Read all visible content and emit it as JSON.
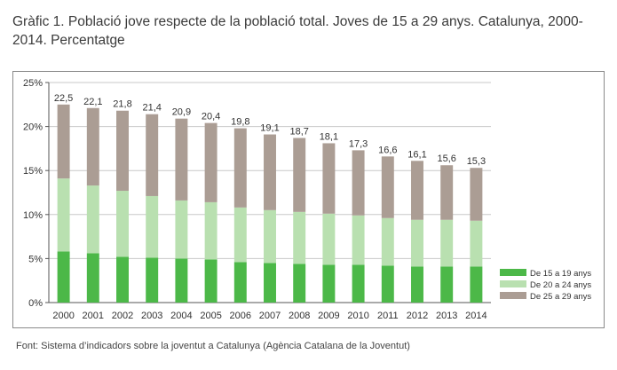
{
  "title": "Gràfic 1. Població jove respecte de la població total. Joves de 15 a 29 anys. Catalunya, 2000-2014. Percentatge",
  "source": "Font: Sistema d’indicadors sobre la joventut a Catalunya (Agència Catalana de la Joventut)",
  "chart_data": {
    "type": "bar",
    "stacked": true,
    "categories": [
      "2000",
      "2001",
      "2002",
      "2003",
      "2004",
      "2005",
      "2006",
      "2007",
      "2008",
      "2009",
      "2010",
      "2011",
      "2012",
      "2013",
      "2014"
    ],
    "series": [
      {
        "name": "De 15 a 19 anys",
        "color": "#4cb848",
        "values": [
          5.8,
          5.6,
          5.2,
          5.1,
          5.0,
          4.9,
          4.6,
          4.5,
          4.4,
          4.3,
          4.3,
          4.2,
          4.1,
          4.1,
          4.1
        ]
      },
      {
        "name": "De 20 a 24 anys",
        "color": "#b9e0b0",
        "values": [
          8.3,
          7.7,
          7.5,
          7.0,
          6.6,
          6.5,
          6.2,
          6.0,
          5.9,
          5.8,
          5.6,
          5.4,
          5.3,
          5.3,
          5.2
        ]
      },
      {
        "name": "De 25 a 29 anys",
        "color": "#ab9d94",
        "values": [
          8.4,
          8.8,
          9.1,
          9.3,
          9.3,
          9.0,
          9.0,
          8.6,
          8.4,
          8.0,
          7.4,
          7.0,
          6.7,
          6.2,
          6.0
        ]
      }
    ],
    "totals": [
      "22,5",
      "22,1",
      "21,8",
      "21,4",
      "20,9",
      "20,4",
      "19,8",
      "19,1",
      "18,7",
      "18,1",
      "17,3",
      "16,6",
      "16,1",
      "15,6",
      "15,3"
    ],
    "y_ticks": [
      "0%",
      "5%",
      "10%",
      "15%",
      "20%",
      "25%"
    ],
    "ylim": [
      0,
      25
    ],
    "grid": true,
    "legend_position": "bottom-right"
  }
}
